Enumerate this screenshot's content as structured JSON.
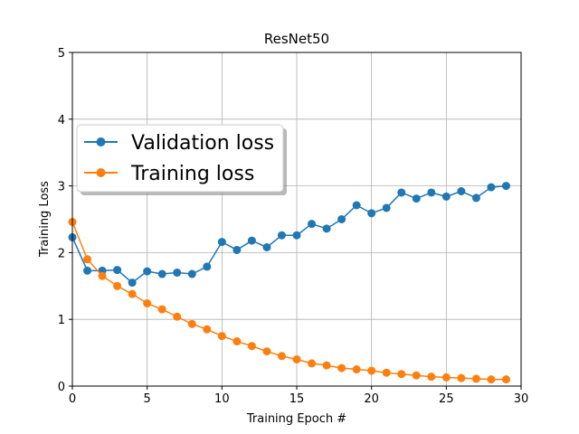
{
  "chart_data": {
    "type": "line",
    "title": "ResNet50",
    "xlabel": "Training Epoch #",
    "ylabel": "Training Loss",
    "xlim": [
      0,
      30
    ],
    "ylim": [
      0,
      5
    ],
    "xticks": [
      0,
      5,
      10,
      15,
      20,
      25,
      30
    ],
    "yticks": [
      0,
      1,
      2,
      3,
      4,
      5
    ],
    "grid": true,
    "legend_position": "upper-left",
    "x": [
      0,
      1,
      2,
      3,
      4,
      5,
      6,
      7,
      8,
      9,
      10,
      11,
      12,
      13,
      14,
      15,
      16,
      17,
      18,
      19,
      20,
      21,
      22,
      23,
      24,
      25,
      26,
      27,
      28,
      29
    ],
    "series": [
      {
        "name": "Validation loss",
        "color": "#1f77b4",
        "marker": "circle",
        "values": [
          2.23,
          1.73,
          1.73,
          1.74,
          1.55,
          1.72,
          1.68,
          1.7,
          1.68,
          1.79,
          2.16,
          2.04,
          2.18,
          2.08,
          2.26,
          2.26,
          2.43,
          2.36,
          2.5,
          2.71,
          2.59,
          2.67,
          2.9,
          2.81,
          2.9,
          2.84,
          2.92,
          2.82,
          2.98,
          3.0
        ]
      },
      {
        "name": "Training loss",
        "color": "#ff7f0e",
        "marker": "circle",
        "values": [
          2.46,
          1.9,
          1.65,
          1.5,
          1.38,
          1.24,
          1.15,
          1.04,
          0.93,
          0.85,
          0.75,
          0.67,
          0.6,
          0.52,
          0.45,
          0.4,
          0.34,
          0.31,
          0.27,
          0.25,
          0.23,
          0.2,
          0.18,
          0.16,
          0.14,
          0.13,
          0.12,
          0.11,
          0.1,
          0.1
        ]
      }
    ]
  }
}
